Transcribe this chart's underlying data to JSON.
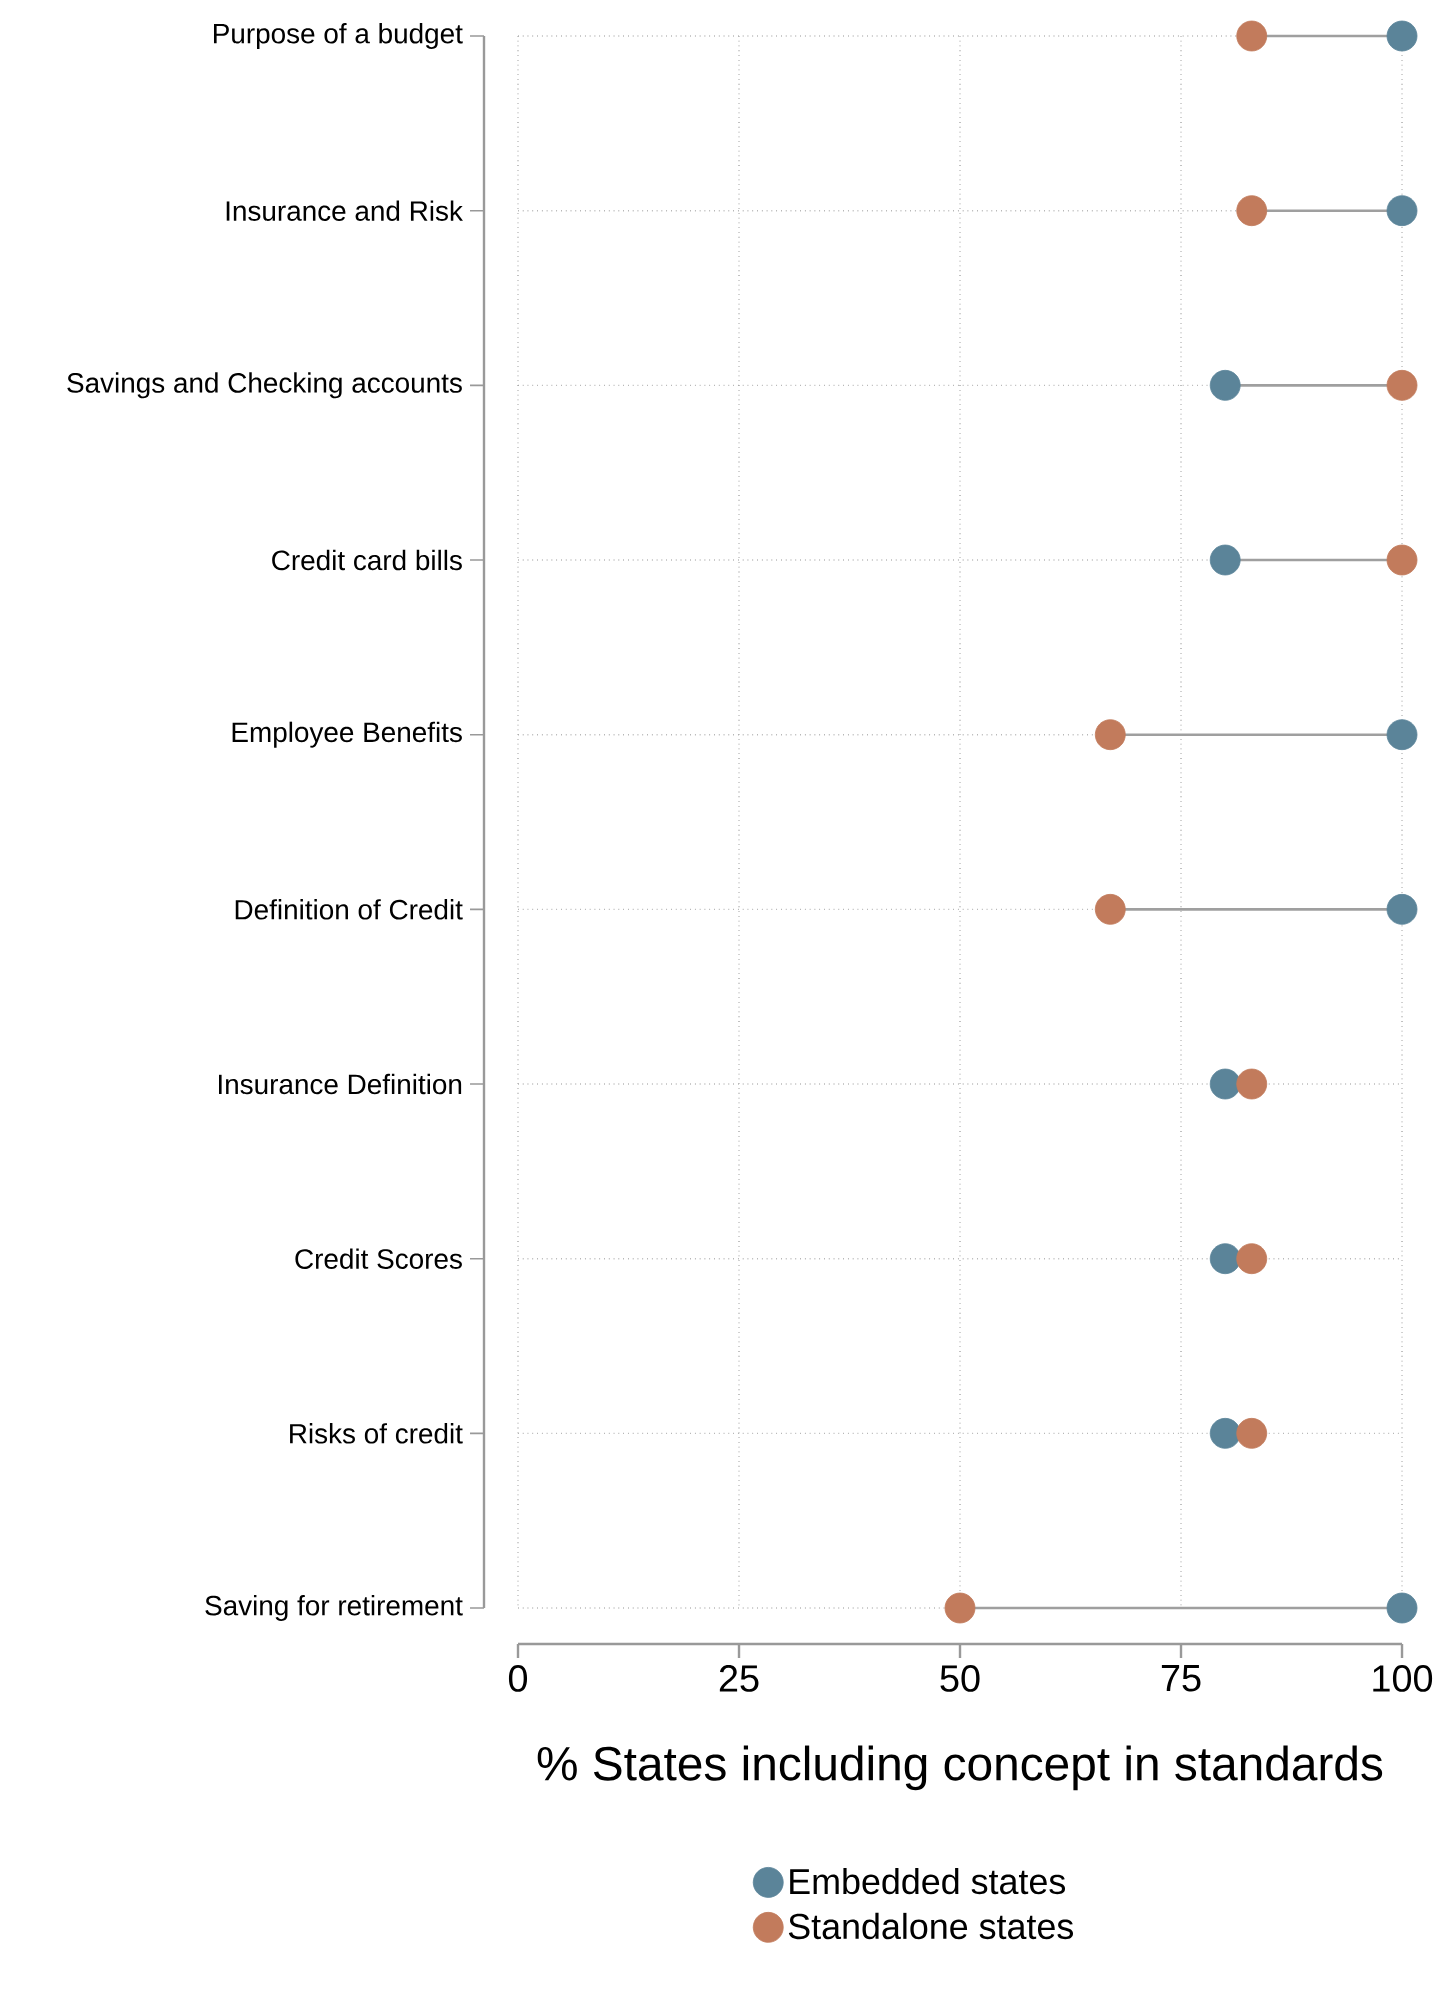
{
  "chart_data": {
    "type": "scatter",
    "orientation": "horizontal",
    "categories": [
      "Purpose of a budget",
      "Insurance and Risk",
      "Savings and Checking accounts",
      "Credit card bills",
      "Employee Benefits",
      "Definition of Credit",
      "Insurance Definition",
      "Credit Scores",
      "Risks of credit",
      "Saving for retirement"
    ],
    "xlabel": "% States including concept in standards",
    "xlim": [
      0,
      100
    ],
    "xticks": [
      0,
      25,
      50,
      75,
      100
    ],
    "grid": true,
    "legend": "bottom",
    "marker": "circle",
    "series": [
      {
        "name": "Embedded states",
        "color": "#5b8499",
        "values": [
          100,
          100,
          80,
          80,
          100,
          100,
          80,
          80,
          80,
          100
        ]
      },
      {
        "name": "Standalone states",
        "color": "#c27b5c",
        "values": [
          83,
          83,
          100,
          100,
          67,
          67,
          83,
          83,
          83,
          50
        ]
      }
    ]
  }
}
